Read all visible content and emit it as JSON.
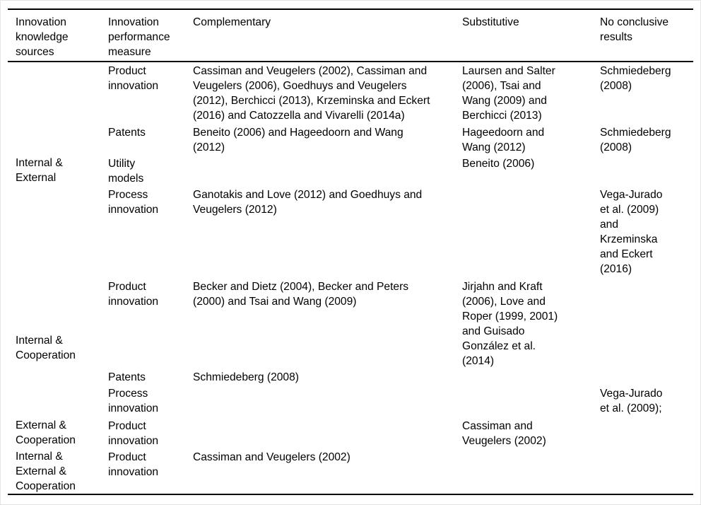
{
  "table": {
    "headers": [
      "Innovation\nknowledge\nsources",
      "Innovation\nperformance\nmeasure",
      "Complementary",
      "Substitutive",
      "No conclusive\nresults"
    ],
    "groups": [
      "Internal &\nExternal",
      "Internal &\nCooperation",
      "External &\nCooperation",
      "Internal &\nExternal &\nCooperation"
    ],
    "rows": [
      {
        "measure": "Product\ninnovation",
        "complementary": "Cassiman and Veugelers (2002), Cassiman and\nVeugelers (2006), Goedhuys and Veugelers\n(2012), Berchicci (2013), Krzeminska and Eckert\n(2016) and Catozzella and Vivarelli (2014a)",
        "substitutive": "Laursen and Salter\n(2006), Tsai and\nWang (2009) and\nBerchicci (2013)",
        "no_conclusive": "Schmiedeberg\n(2008)"
      },
      {
        "measure": "Patents",
        "complementary": "Beneito (2006) and Hageedoorn and Wang\n(2012)",
        "substitutive": "Hageedoorn and\nWang (2012)",
        "no_conclusive": "Schmiedeberg\n(2008)"
      },
      {
        "measure": "Utility\nmodels",
        "complementary": "",
        "substitutive": "Beneito (2006)",
        "no_conclusive": ""
      },
      {
        "measure": "Process\ninnovation",
        "complementary": "Ganotakis and Love (2012) and Goedhuys and\nVeugelers (2012)",
        "substitutive": "",
        "no_conclusive": "Vega-Jurado\net al. (2009)\nand\nKrzeminska\nand Eckert\n(2016)"
      },
      {
        "measure": "Product\ninnovation",
        "complementary": "Becker and Dietz (2004), Becker and Peters\n(2000) and Tsai and Wang (2009)",
        "substitutive": "Jirjahn and Kraft\n(2006), Love and\nRoper (1999, 2001)\nand Guisado\nGonzález et al.\n(2014)",
        "no_conclusive": ""
      },
      {
        "measure": "Patents",
        "complementary": "Schmiedeberg (2008)",
        "substitutive": "",
        "no_conclusive": ""
      },
      {
        "measure": "Process\ninnovation",
        "complementary": "",
        "substitutive": "",
        "no_conclusive": "Vega-Jurado\net al. (2009);"
      },
      {
        "measure": "Product\ninnovation",
        "complementary": "",
        "substitutive": "Cassiman and\nVeugelers (2002)",
        "no_conclusive": ""
      },
      {
        "measure": "Product\ninnovation",
        "complementary": "Cassiman and Veugelers (2002)",
        "substitutive": "",
        "no_conclusive": ""
      }
    ]
  }
}
